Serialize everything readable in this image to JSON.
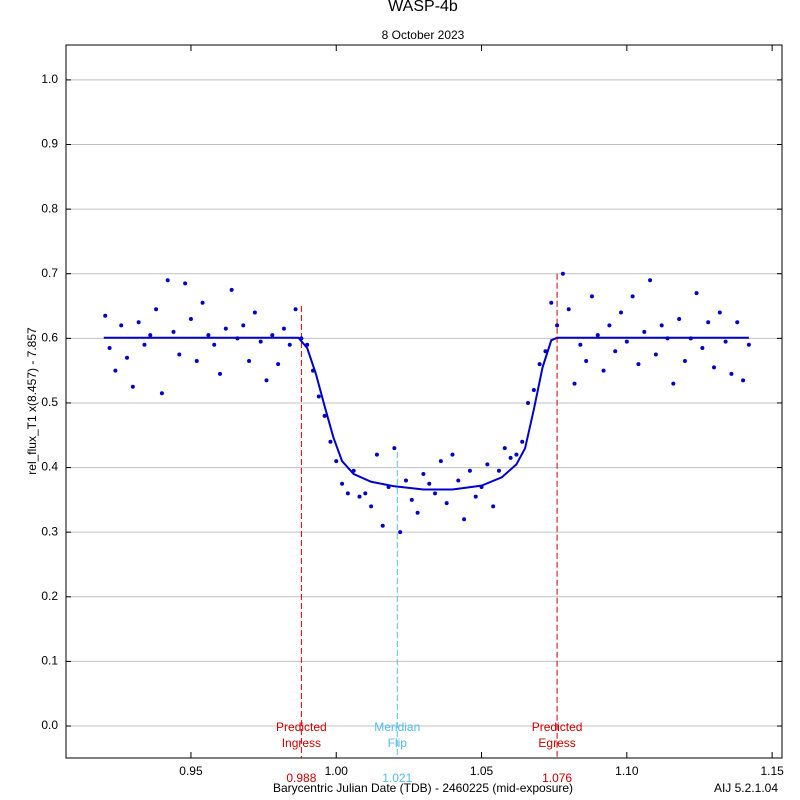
{
  "chart_data": {
    "type": "scatter",
    "title": "WASP-4b",
    "subtitle": "8 October 2023",
    "x_label": "Barycentric Julian Date (TDB) - 2460225 (mid-exposure)",
    "y_label": "rel_flux_T1 x(8.457) - 7.857",
    "footer": "AIJ 5.2.1.04",
    "xlim": [
      0.907,
      1.1534
    ],
    "ylim": [
      -0.0495,
      1.054
    ],
    "xticks": [
      0.95,
      {
        "value": 1.0,
        "label": "1.00"
      },
      1.05,
      {
        "value": 1.1,
        "label": "1.10"
      },
      1.15
    ],
    "yticks": [
      {
        "value": 0.0,
        "label": "0.0"
      },
      0.1,
      0.2,
      0.3,
      0.4,
      0.5,
      0.6,
      0.7,
      0.8,
      0.9,
      {
        "value": 1.0,
        "label": "1.0"
      }
    ],
    "grid": true,
    "series": [
      {
        "type": "scatter",
        "color": "#0000cc",
        "x": [
          0.9205,
          0.922,
          0.924,
          0.926,
          0.928,
          0.93,
          0.932,
          0.934,
          0.936,
          0.938,
          0.94,
          0.942,
          0.944,
          0.946,
          0.948,
          0.95,
          0.952,
          0.954,
          0.956,
          0.958,
          0.96,
          0.962,
          0.964,
          0.966,
          0.968,
          0.97,
          0.972,
          0.974,
          0.976,
          0.978,
          0.98,
          0.982,
          0.984,
          0.986,
          0.988,
          0.99,
          0.992,
          0.994,
          0.996,
          0.998,
          1.0,
          1.002,
          1.004,
          1.006,
          1.008,
          1.01,
          1.012,
          1.014,
          1.016,
          1.018,
          1.02,
          1.022,
          1.024,
          1.026,
          1.028,
          1.03,
          1.032,
          1.034,
          1.036,
          1.038,
          1.04,
          1.042,
          1.044,
          1.046,
          1.048,
          1.05,
          1.052,
          1.054,
          1.056,
          1.058,
          1.06,
          1.062,
          1.064,
          1.066,
          1.068,
          1.07,
          1.072,
          1.074,
          1.076,
          1.078,
          1.08,
          1.082,
          1.084,
          1.086,
          1.088,
          1.09,
          1.092,
          1.094,
          1.096,
          1.098,
          1.1,
          1.102,
          1.104,
          1.106,
          1.108,
          1.11,
          1.112,
          1.114,
          1.116,
          1.118,
          1.12,
          1.122,
          1.124,
          1.126,
          1.128,
          1.13,
          1.132,
          1.134,
          1.136,
          1.138,
          1.14,
          1.142
        ],
        "values": [
          0.635,
          0.585,
          0.55,
          0.62,
          0.57,
          0.525,
          0.625,
          0.59,
          0.605,
          0.645,
          0.515,
          0.69,
          0.61,
          0.575,
          0.685,
          0.63,
          0.565,
          0.655,
          0.605,
          0.59,
          0.545,
          0.615,
          0.675,
          0.6,
          0.62,
          0.565,
          0.64,
          0.595,
          0.535,
          0.605,
          0.56,
          0.615,
          0.59,
          0.645,
          0.6,
          0.59,
          0.55,
          0.51,
          0.48,
          0.44,
          0.41,
          0.375,
          0.36,
          0.395,
          0.355,
          0.36,
          0.34,
          0.42,
          0.31,
          0.37,
          0.43,
          0.3,
          0.38,
          0.35,
          0.33,
          0.39,
          0.375,
          0.36,
          0.41,
          0.345,
          0.42,
          0.38,
          0.32,
          0.395,
          0.355,
          0.37,
          0.405,
          0.34,
          0.395,
          0.43,
          0.415,
          0.42,
          0.44,
          0.5,
          0.52,
          0.56,
          0.58,
          0.655,
          0.62,
          0.7,
          0.645,
          0.53,
          0.59,
          0.565,
          0.665,
          0.605,
          0.55,
          0.62,
          0.58,
          0.64,
          0.595,
          0.665,
          0.56,
          0.61,
          0.69,
          0.575,
          0.62,
          0.6,
          0.53,
          0.63,
          0.565,
          0.6,
          0.67,
          0.585,
          0.625,
          0.555,
          0.64,
          0.595,
          0.545,
          0.625,
          0.535,
          0.59
        ]
      },
      {
        "type": "line",
        "color": "#0000cc",
        "x": [
          0.92,
          0.987,
          0.99,
          0.993,
          0.996,
          0.999,
          1.002,
          1.006,
          1.012,
          1.02,
          1.03,
          1.04,
          1.05,
          1.057,
          1.062,
          1.065,
          1.068,
          1.071,
          1.074,
          1.076,
          1.142
        ],
        "values": [
          0.601,
          0.601,
          0.585,
          0.545,
          0.495,
          0.447,
          0.41,
          0.39,
          0.378,
          0.371,
          0.366,
          0.366,
          0.372,
          0.385,
          0.405,
          0.43,
          0.49,
          0.555,
          0.597,
          0.601,
          0.601
        ]
      }
    ],
    "markers": [
      {
        "x": 0.988,
        "top": 0.65,
        "color": "#cc0000",
        "text": [
          "Predicted",
          "Ingress"
        ]
      },
      {
        "x": 1.021,
        "top": 0.424,
        "color": "#55bbee",
        "text": [
          "Meridian",
          "Flip"
        ]
      },
      {
        "x": 1.076,
        "top": 0.7,
        "color": "#cc0000",
        "text": [
          "Predicted",
          "Egress"
        ]
      }
    ]
  }
}
